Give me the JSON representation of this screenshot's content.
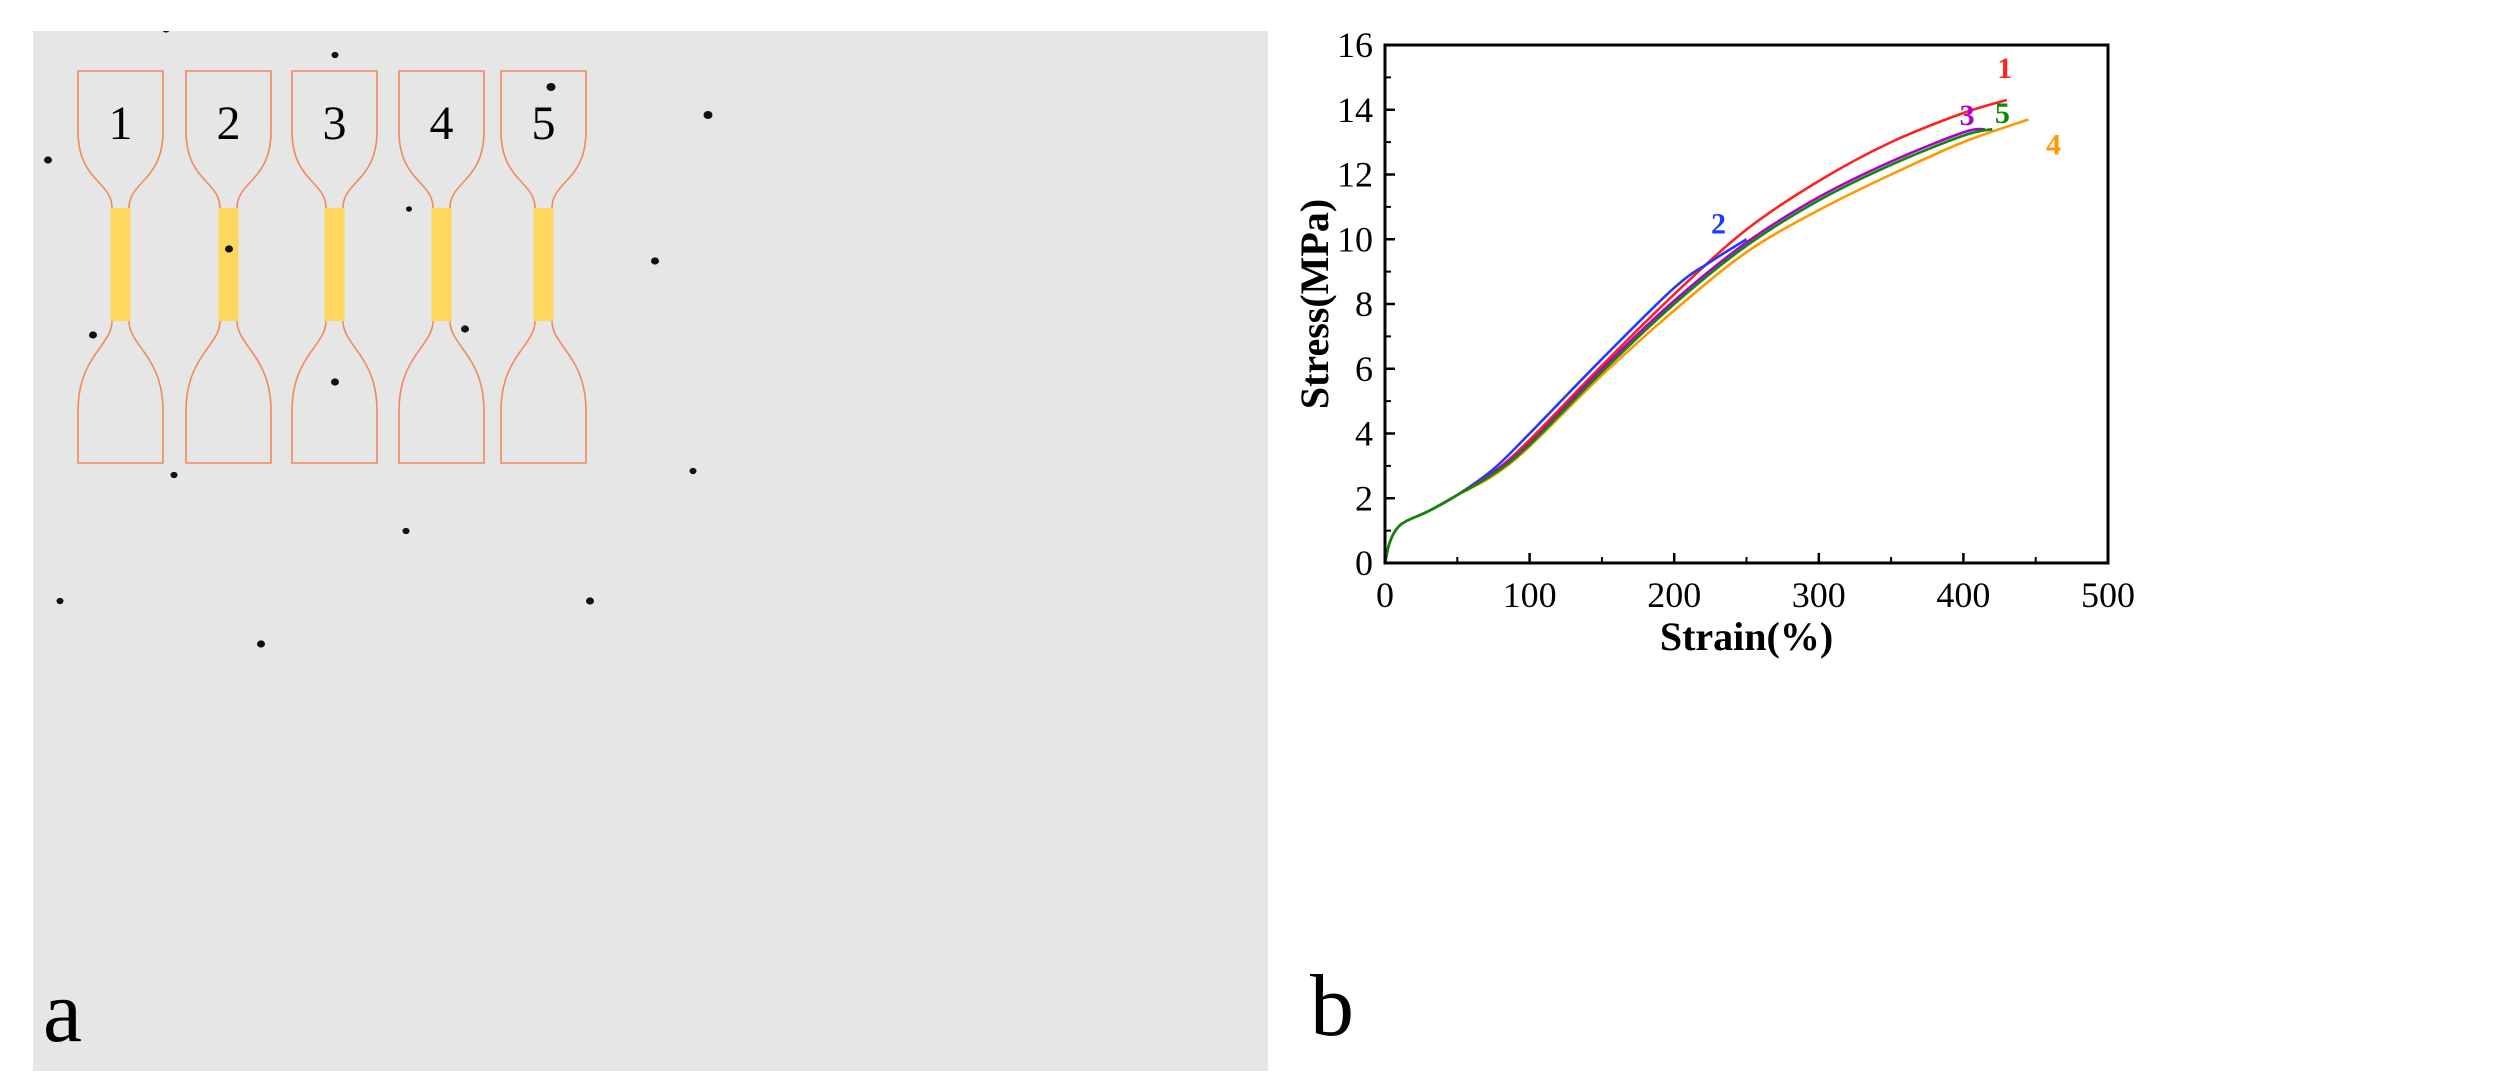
{
  "panel_a": {
    "label": "a",
    "background": "#e6e6e6",
    "outline_color": "#f08a5d",
    "gauge_color": "#ffd75e",
    "dot_color": "#111111",
    "specimens": [
      {
        "label": "1"
      },
      {
        "label": "2"
      },
      {
        "label": "3"
      },
      {
        "label": "4"
      },
      {
        "label": "5"
      }
    ]
  },
  "chart_data": {
    "type": "line",
    "panel_label": "b",
    "title": "",
    "xlabel": "Strain(%)",
    "ylabel": "Stress(MPa)",
    "xlim": [
      0,
      500
    ],
    "ylim": [
      0,
      16
    ],
    "xticks": [
      0,
      100,
      200,
      300,
      400,
      500
    ],
    "yticks": [
      0,
      2,
      4,
      6,
      8,
      10,
      12,
      14,
      16
    ],
    "grid": false,
    "series": [
      {
        "name": "1",
        "color": "#ff2020",
        "x": [
          0,
          3,
          8,
          15,
          30,
          50,
          75,
          100,
          150,
          200,
          250,
          300,
          350,
          400,
          430
        ],
        "y": [
          0,
          0.6,
          1.05,
          1.3,
          1.6,
          2.1,
          2.8,
          3.8,
          6.1,
          8.3,
          10.3,
          11.8,
          13.0,
          13.9,
          14.3
        ]
      },
      {
        "name": "2",
        "color": "#1e3cff",
        "x": [
          0,
          3,
          8,
          15,
          30,
          50,
          75,
          100,
          150,
          200,
          225,
          250
        ],
        "y": [
          0,
          0.6,
          1.05,
          1.3,
          1.6,
          2.1,
          2.9,
          4.0,
          6.3,
          8.5,
          9.3,
          10.0
        ]
      },
      {
        "name": "3",
        "color": "#b000c8",
        "x": [
          0,
          3,
          8,
          15,
          30,
          50,
          75,
          100,
          150,
          200,
          250,
          300,
          350,
          400,
          415
        ],
        "y": [
          0,
          0.6,
          1.05,
          1.3,
          1.6,
          2.1,
          2.8,
          3.7,
          6.0,
          8.1,
          9.9,
          11.3,
          12.4,
          13.3,
          13.4
        ]
      },
      {
        "name": "4",
        "color": "#ff9900",
        "x": [
          0,
          3,
          8,
          15,
          30,
          50,
          75,
          100,
          150,
          200,
          250,
          300,
          350,
          400,
          445
        ],
        "y": [
          0,
          0.6,
          1.05,
          1.3,
          1.6,
          2.1,
          2.7,
          3.6,
          5.8,
          7.8,
          9.6,
          10.9,
          12.0,
          13.0,
          13.7
        ]
      },
      {
        "name": "5",
        "color": "#0a8a0a",
        "x": [
          0,
          3,
          8,
          15,
          30,
          50,
          75,
          100,
          150,
          200,
          250,
          300,
          350,
          400,
          420
        ],
        "y": [
          0,
          0.6,
          1.05,
          1.3,
          1.6,
          2.1,
          2.75,
          3.65,
          5.9,
          8.0,
          9.8,
          11.2,
          12.3,
          13.2,
          13.4
        ]
      }
    ]
  }
}
